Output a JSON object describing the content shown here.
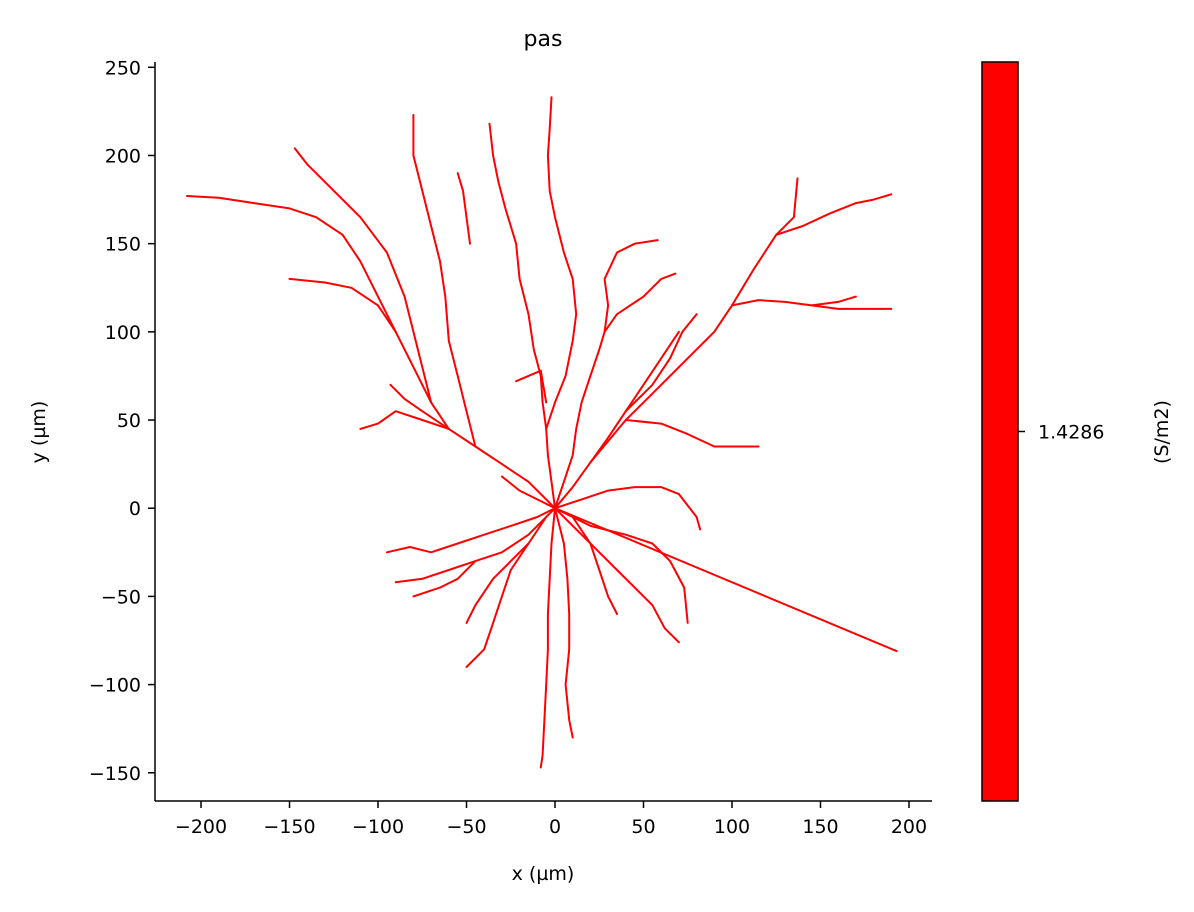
{
  "chart_data": {
    "type": "line",
    "title": "pas",
    "xlabel": "x (µm)",
    "ylabel": "y (µm)",
    "xlim": [
      -226,
      213
    ],
    "ylim": [
      -166,
      253
    ],
    "xticks": [
      -200,
      -150,
      -100,
      -50,
      0,
      50,
      100,
      150,
      200
    ],
    "yticks": [
      -150,
      -100,
      -50,
      0,
      50,
      100,
      150,
      200,
      250
    ],
    "xtick_labels": [
      "−200",
      "−150",
      "−100",
      "−50",
      "0",
      "50",
      "100",
      "150",
      "200"
    ],
    "ytick_labels": [
      "−150",
      "−100",
      "−50",
      "0",
      "50",
      "100",
      "150",
      "200",
      "250"
    ],
    "grid": false,
    "line_color": "#ff0000",
    "colorbar": {
      "label": "(S/m2)",
      "color": "#ff0000",
      "tick_label": "1.4286",
      "tick_position": 0.5
    },
    "series": [
      {
        "points": [
          [
            0,
            0
          ],
          [
            193,
            -81
          ]
        ]
      },
      {
        "points": [
          [
            0,
            0
          ],
          [
            10,
            12
          ],
          [
            20,
            26
          ],
          [
            40,
            50
          ],
          [
            60,
            70
          ],
          [
            75,
            85
          ],
          [
            90,
            100
          ],
          [
            100,
            115
          ],
          [
            112,
            135
          ],
          [
            125,
            155
          ],
          [
            135,
            165
          ],
          [
            137,
            187
          ]
        ]
      },
      {
        "points": [
          [
            125,
            155
          ],
          [
            140,
            160
          ],
          [
            155,
            167
          ],
          [
            170,
            173
          ],
          [
            180,
            175
          ],
          [
            190,
            178
          ]
        ]
      },
      {
        "points": [
          [
            100,
            115
          ],
          [
            115,
            118
          ],
          [
            130,
            117
          ],
          [
            145,
            115
          ],
          [
            160,
            117
          ],
          [
            170,
            120
          ]
        ]
      },
      {
        "points": [
          [
            145,
            115
          ],
          [
            160,
            113
          ],
          [
            175,
            113
          ],
          [
            190,
            113
          ]
        ]
      },
      {
        "points": [
          [
            20,
            26
          ],
          [
            30,
            40
          ],
          [
            40,
            55
          ],
          [
            50,
            70
          ],
          [
            60,
            85
          ],
          [
            70,
            100
          ]
        ]
      },
      {
        "points": [
          [
            40,
            55
          ],
          [
            55,
            70
          ],
          [
            65,
            85
          ],
          [
            72,
            100
          ],
          [
            80,
            110
          ]
        ]
      },
      {
        "points": [
          [
            0,
            0
          ],
          [
            5,
            15
          ],
          [
            10,
            30
          ],
          [
            12,
            45
          ],
          [
            15,
            60
          ],
          [
            20,
            75
          ],
          [
            25,
            90
          ],
          [
            28,
            100
          ],
          [
            35,
            110
          ],
          [
            50,
            120
          ],
          [
            60,
            130
          ],
          [
            68,
            133
          ]
        ]
      },
      {
        "points": [
          [
            28,
            100
          ],
          [
            30,
            115
          ],
          [
            28,
            130
          ],
          [
            35,
            145
          ],
          [
            45,
            150
          ],
          [
            58,
            152
          ]
        ]
      },
      {
        "points": [
          [
            0,
            0
          ],
          [
            -2,
            15
          ],
          [
            -4,
            30
          ],
          [
            -5,
            45
          ],
          [
            -7,
            60
          ],
          [
            -8,
            75
          ],
          [
            -12,
            90
          ],
          [
            -15,
            110
          ],
          [
            -20,
            130
          ],
          [
            -22,
            150
          ],
          [
            -28,
            170
          ],
          [
            -32,
            185
          ],
          [
            -35,
            200
          ],
          [
            -37,
            218
          ]
        ]
      },
      {
        "points": [
          [
            -5,
            45
          ],
          [
            0,
            60
          ],
          [
            6,
            75
          ],
          [
            10,
            95
          ],
          [
            12,
            110
          ],
          [
            10,
            130
          ],
          [
            5,
            145
          ],
          [
            0,
            165
          ],
          [
            -3,
            180
          ],
          [
            -4,
            200
          ],
          [
            -3,
            215
          ],
          [
            -2,
            233
          ]
        ]
      },
      {
        "points": [
          [
            0,
            0
          ],
          [
            -15,
            15
          ],
          [
            -30,
            25
          ],
          [
            -45,
            35
          ],
          [
            -60,
            45
          ],
          [
            -70,
            60
          ],
          [
            -80,
            80
          ],
          [
            -90,
            100
          ],
          [
            -100,
            120
          ],
          [
            -110,
            140
          ],
          [
            -120,
            155
          ],
          [
            -135,
            165
          ],
          [
            -150,
            170
          ],
          [
            -170,
            173
          ],
          [
            -190,
            176
          ],
          [
            -208,
            177
          ]
        ]
      },
      {
        "points": [
          [
            -90,
            100
          ],
          [
            -100,
            115
          ],
          [
            -115,
            125
          ],
          [
            -130,
            128
          ],
          [
            -150,
            130
          ]
        ]
      },
      {
        "points": [
          [
            -70,
            60
          ],
          [
            -75,
            80
          ],
          [
            -80,
            100
          ],
          [
            -85,
            120
          ],
          [
            -95,
            145
          ],
          [
            -110,
            165
          ],
          [
            -125,
            180
          ],
          [
            -140,
            195
          ],
          [
            -147,
            204
          ]
        ]
      },
      {
        "points": [
          [
            -45,
            35
          ],
          [
            -50,
            55
          ],
          [
            -55,
            75
          ],
          [
            -60,
            95
          ],
          [
            -62,
            120
          ],
          [
            -65,
            140
          ],
          [
            -70,
            160
          ],
          [
            -75,
            180
          ],
          [
            -80,
            200
          ],
          [
            -80,
            223
          ]
        ]
      },
      {
        "points": [
          [
            -60,
            45
          ],
          [
            -75,
            50
          ],
          [
            -90,
            55
          ],
          [
            -100,
            48
          ],
          [
            -110,
            45
          ]
        ]
      },
      {
        "points": [
          [
            -60,
            45
          ],
          [
            -75,
            55
          ],
          [
            -85,
            62
          ],
          [
            -93,
            70
          ]
        ]
      },
      {
        "points": [
          [
            0,
            0
          ],
          [
            -10,
            -5
          ],
          [
            -25,
            -10
          ],
          [
            -40,
            -15
          ],
          [
            -55,
            -20
          ],
          [
            -70,
            -25
          ],
          [
            -82,
            -22
          ],
          [
            -95,
            -25
          ]
        ]
      },
      {
        "points": [
          [
            0,
            0
          ],
          [
            -15,
            -15
          ],
          [
            -30,
            -25
          ],
          [
            -45,
            -30
          ],
          [
            -60,
            -35
          ],
          [
            -75,
            -40
          ],
          [
            -90,
            -42
          ]
        ]
      },
      {
        "points": [
          [
            -45,
            -30
          ],
          [
            -55,
            -40
          ],
          [
            -65,
            -45
          ],
          [
            -80,
            -50
          ]
        ]
      },
      {
        "points": [
          [
            -5,
            -5
          ],
          [
            -15,
            -20
          ],
          [
            -25,
            -35
          ],
          [
            -30,
            -50
          ],
          [
            -35,
            -65
          ],
          [
            -40,
            -80
          ],
          [
            -50,
            -90
          ]
        ]
      },
      {
        "points": [
          [
            -15,
            -20
          ],
          [
            -25,
            -30
          ],
          [
            -35,
            -40
          ],
          [
            -45,
            -55
          ],
          [
            -50,
            -65
          ]
        ]
      },
      {
        "points": [
          [
            0,
            0
          ],
          [
            -2,
            -20
          ],
          [
            -3,
            -40
          ],
          [
            -4,
            -60
          ],
          [
            -4,
            -80
          ],
          [
            -5,
            -100
          ],
          [
            -6,
            -120
          ],
          [
            -7,
            -140
          ],
          [
            -8,
            -147
          ]
        ]
      },
      {
        "points": [
          [
            0,
            0
          ],
          [
            5,
            -20
          ],
          [
            7,
            -40
          ],
          [
            8,
            -60
          ],
          [
            8,
            -80
          ],
          [
            6,
            -100
          ],
          [
            8,
            -120
          ],
          [
            10,
            -130
          ]
        ]
      },
      {
        "points": [
          [
            0,
            0
          ],
          [
            15,
            -15
          ],
          [
            25,
            -25
          ],
          [
            35,
            -35
          ],
          [
            45,
            -45
          ],
          [
            55,
            -55
          ],
          [
            62,
            -68
          ],
          [
            70,
            -76
          ]
        ]
      },
      {
        "points": [
          [
            0,
            0
          ],
          [
            20,
            -10
          ],
          [
            40,
            -15
          ],
          [
            55,
            -20
          ],
          [
            65,
            -30
          ],
          [
            73,
            -45
          ],
          [
            75,
            -65
          ]
        ]
      },
      {
        "points": [
          [
            10,
            -5
          ],
          [
            20,
            -20
          ],
          [
            25,
            -35
          ],
          [
            30,
            -50
          ],
          [
            35,
            -60
          ]
        ]
      },
      {
        "points": [
          [
            0,
            0
          ],
          [
            15,
            5
          ],
          [
            30,
            10
          ],
          [
            45,
            12
          ],
          [
            60,
            12
          ],
          [
            70,
            8
          ],
          [
            80,
            -5
          ],
          [
            82,
            -12
          ]
        ]
      },
      {
        "points": [
          [
            40,
            50
          ],
          [
            60,
            48
          ],
          [
            75,
            42
          ],
          [
            90,
            35
          ],
          [
            105,
            35
          ],
          [
            115,
            35
          ]
        ]
      },
      {
        "points": [
          [
            -30,
            18
          ],
          [
            -20,
            10
          ],
          [
            -10,
            5
          ],
          [
            0,
            0
          ]
        ]
      },
      {
        "points": [
          [
            -22,
            72
          ],
          [
            -15,
            75
          ],
          [
            -8,
            78
          ],
          [
            -5,
            60
          ]
        ]
      },
      {
        "points": [
          [
            -55,
            190
          ],
          [
            -52,
            180
          ],
          [
            -50,
            165
          ],
          [
            -48,
            150
          ]
        ]
      }
    ]
  }
}
